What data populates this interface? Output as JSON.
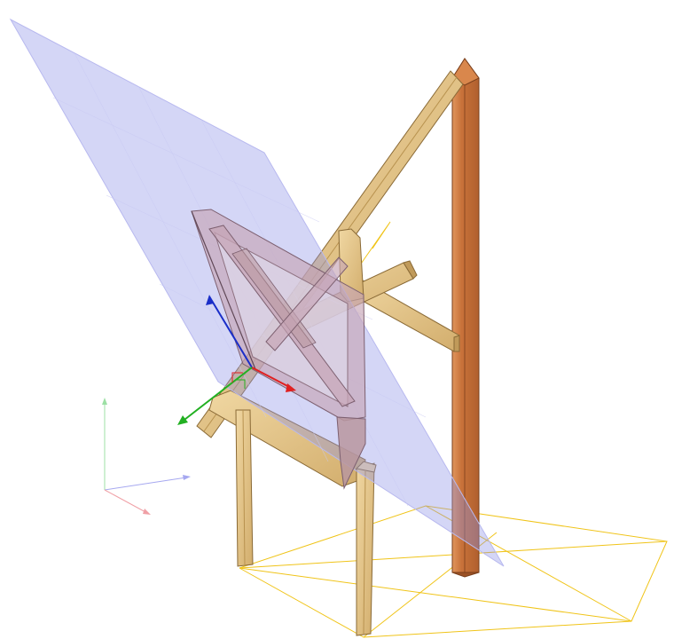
{
  "scene": {
    "description_hidden": "",
    "colors": {
      "background": "#ffffff",
      "plane_fill": "#8f92e8",
      "plane_edge": "#b8b9ef",
      "wood_light": "#e6c98f",
      "wood_mid": "#d2ad6c",
      "wood_dark": "#a98349",
      "post_face": "#c8723a",
      "post_side": "#9c5226",
      "post_highlight": "#e0955c",
      "ghost_wood": "#c6a4b5",
      "ghost_wood_dark": "#9e7f93",
      "guide_lines": "#f0c419",
      "axis_x": "#e02020",
      "axis_y": "#22b022",
      "axis_z": "#1a2ec8",
      "triad_x": "#f0a0a6",
      "triad_y": "#9ce0a4",
      "triad_z": "#a6a8f0"
    },
    "icons": {
      "gizmo": "move-gizmo-icon",
      "triad": "axis-triad-icon"
    }
  }
}
